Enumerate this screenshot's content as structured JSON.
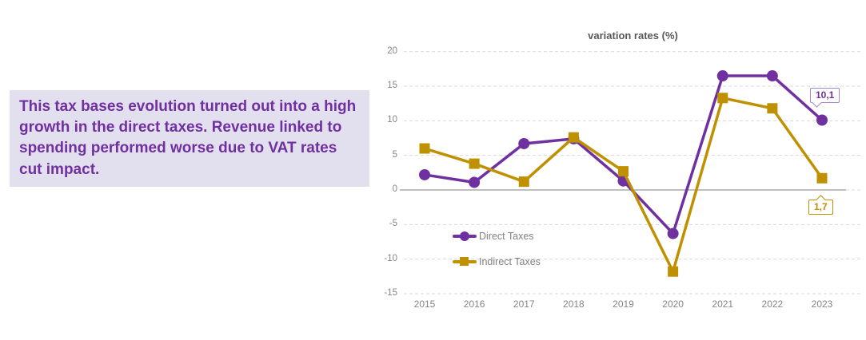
{
  "note": {
    "text": "This tax bases evolution turned out into a high growth in the direct taxes. Revenue linked to spending performed worse due to VAT rates cut impact."
  },
  "chart": {
    "title": "variation rates (%)",
    "callouts": {
      "direct_2023": "10,1",
      "indirect_2023": "1,7"
    }
  },
  "chart_data": {
    "type": "line",
    "title": "variation rates (%)",
    "x": [
      "2015",
      "2016",
      "2017",
      "2018",
      "2019",
      "2020",
      "2021",
      "2022",
      "2023"
    ],
    "series": [
      {
        "name": "Direct Taxes",
        "color": "#7030a0",
        "marker": "circle",
        "values": [
          2.2,
          1.1,
          6.7,
          7.4,
          1.3,
          -6.3,
          16.5,
          16.5,
          10.1
        ]
      },
      {
        "name": "Indirect Taxes",
        "color": "#bf9000",
        "marker": "square",
        "values": [
          6.0,
          3.8,
          1.2,
          7.6,
          2.7,
          -11.8,
          13.3,
          11.8,
          1.7
        ]
      }
    ],
    "ylim": [
      -15,
      20
    ],
    "yticks": [
      20,
      15,
      10,
      5,
      0,
      -5,
      -10,
      -15
    ],
    "grid": "horizontal dashed",
    "legend_position": "inside lower-left",
    "annotations": [
      {
        "series": "Direct Taxes",
        "x": "2023",
        "label": "10,1"
      },
      {
        "series": "Indirect Taxes",
        "x": "2023",
        "label": "1,7"
      }
    ],
    "colors": {
      "grid": "#d9d9d9",
      "zero_line": "#808080",
      "axis_text": "#808080",
      "title_text": "#595959",
      "note_bg": "#e2dfee",
      "note_text": "#7030a0"
    }
  }
}
